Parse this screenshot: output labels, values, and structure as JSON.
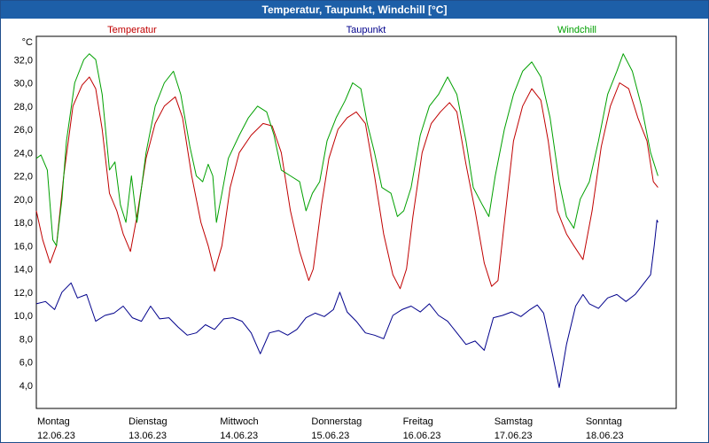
{
  "window": {
    "title": "Temperatur, Taupunkt, Windchill [°C]"
  },
  "chart_data": {
    "type": "line",
    "title": "Temperatur, Taupunkt, Windchill [°C]",
    "ylabel": "°C",
    "xlabel": "",
    "ylim": [
      2.0,
      34.0
    ],
    "xlim": [
      0,
      7
    ],
    "grid": true,
    "legend_position": "top",
    "yticks": [
      4,
      6,
      8,
      10,
      12,
      14,
      16,
      18,
      20,
      22,
      24,
      26,
      28,
      30,
      32
    ],
    "ytick_labels": [
      "4,0",
      "6,0",
      "8,0",
      "10,0",
      "12,0",
      "14,0",
      "16,0",
      "18,0",
      "20,0",
      "22,0",
      "24,0",
      "26,0",
      "28,0",
      "30,0",
      "32,0"
    ],
    "x_ticks": [
      {
        "day": "Montag",
        "date": "12.06.23"
      },
      {
        "day": "Dienstag",
        "date": "13.06.23"
      },
      {
        "day": "Mittwoch",
        "date": "14.06.23"
      },
      {
        "day": "Donnerstag",
        "date": "15.06.23"
      },
      {
        "day": "Freitag",
        "date": "16.06.23"
      },
      {
        "day": "Samstag",
        "date": "17.06.23"
      },
      {
        "day": "Sonntag",
        "date": "18.06.23"
      }
    ],
    "series": [
      {
        "name": "Temperatur",
        "color": "#c00000",
        "points": [
          [
            0.0,
            19.0
          ],
          [
            0.07,
            16.5
          ],
          [
            0.15,
            14.5
          ],
          [
            0.22,
            16.0
          ],
          [
            0.3,
            22.0
          ],
          [
            0.4,
            28.0
          ],
          [
            0.5,
            29.8
          ],
          [
            0.58,
            30.5
          ],
          [
            0.65,
            29.5
          ],
          [
            0.72,
            26.0
          ],
          [
            0.8,
            20.5
          ],
          [
            0.88,
            19.0
          ],
          [
            0.95,
            17.0
          ],
          [
            1.03,
            15.5
          ],
          [
            1.1,
            18.5
          ],
          [
            1.2,
            23.5
          ],
          [
            1.3,
            26.5
          ],
          [
            1.4,
            28.0
          ],
          [
            1.52,
            28.8
          ],
          [
            1.6,
            27.0
          ],
          [
            1.7,
            22.0
          ],
          [
            1.8,
            18.0
          ],
          [
            1.88,
            16.0
          ],
          [
            1.95,
            13.8
          ],
          [
            2.03,
            16.0
          ],
          [
            2.12,
            21.0
          ],
          [
            2.22,
            24.0
          ],
          [
            2.35,
            25.5
          ],
          [
            2.48,
            26.5
          ],
          [
            2.58,
            26.3
          ],
          [
            2.68,
            24.0
          ],
          [
            2.78,
            19.0
          ],
          [
            2.88,
            15.5
          ],
          [
            2.98,
            13.0
          ],
          [
            3.03,
            14.0
          ],
          [
            3.12,
            19.5
          ],
          [
            3.2,
            23.5
          ],
          [
            3.3,
            26.0
          ],
          [
            3.4,
            27.0
          ],
          [
            3.5,
            27.5
          ],
          [
            3.6,
            26.5
          ],
          [
            3.7,
            22.0
          ],
          [
            3.8,
            17.0
          ],
          [
            3.9,
            13.5
          ],
          [
            3.98,
            12.3
          ],
          [
            4.05,
            14.0
          ],
          [
            4.12,
            18.5
          ],
          [
            4.22,
            24.0
          ],
          [
            4.32,
            26.5
          ],
          [
            4.42,
            27.5
          ],
          [
            4.52,
            28.3
          ],
          [
            4.6,
            27.5
          ],
          [
            4.7,
            23.0
          ],
          [
            4.8,
            19.0
          ],
          [
            4.9,
            14.5
          ],
          [
            4.98,
            12.5
          ],
          [
            5.05,
            13.0
          ],
          [
            5.12,
            18.0
          ],
          [
            5.22,
            25.0
          ],
          [
            5.32,
            28.0
          ],
          [
            5.42,
            29.5
          ],
          [
            5.52,
            28.5
          ],
          [
            5.6,
            25.0
          ],
          [
            5.7,
            19.0
          ],
          [
            5.8,
            17.0
          ],
          [
            5.88,
            16.0
          ],
          [
            5.98,
            14.8
          ],
          [
            6.08,
            19.0
          ],
          [
            6.18,
            24.5
          ],
          [
            6.28,
            28.0
          ],
          [
            6.38,
            30.0
          ],
          [
            6.48,
            29.5
          ],
          [
            6.58,
            27.0
          ],
          [
            6.68,
            25.0
          ],
          [
            6.75,
            21.5
          ],
          [
            6.8,
            21.0
          ]
        ]
      },
      {
        "name": "Taupunkt",
        "color": "#00008b",
        "points": [
          [
            0.0,
            11.0
          ],
          [
            0.1,
            11.2
          ],
          [
            0.2,
            10.5
          ],
          [
            0.28,
            12.0
          ],
          [
            0.38,
            12.8
          ],
          [
            0.45,
            11.5
          ],
          [
            0.55,
            11.8
          ],
          [
            0.65,
            9.5
          ],
          [
            0.75,
            10.0
          ],
          [
            0.85,
            10.2
          ],
          [
            0.95,
            10.8
          ],
          [
            1.05,
            9.8
          ],
          [
            1.15,
            9.5
          ],
          [
            1.25,
            10.8
          ],
          [
            1.35,
            9.7
          ],
          [
            1.45,
            9.8
          ],
          [
            1.55,
            9.0
          ],
          [
            1.65,
            8.3
          ],
          [
            1.75,
            8.5
          ],
          [
            1.85,
            9.2
          ],
          [
            1.95,
            8.8
          ],
          [
            2.05,
            9.7
          ],
          [
            2.15,
            9.8
          ],
          [
            2.25,
            9.5
          ],
          [
            2.35,
            8.5
          ],
          [
            2.45,
            6.7
          ],
          [
            2.55,
            8.5
          ],
          [
            2.65,
            8.7
          ],
          [
            2.75,
            8.3
          ],
          [
            2.85,
            8.8
          ],
          [
            2.95,
            9.8
          ],
          [
            3.05,
            10.2
          ],
          [
            3.15,
            9.9
          ],
          [
            3.25,
            10.5
          ],
          [
            3.32,
            12.0
          ],
          [
            3.4,
            10.3
          ],
          [
            3.5,
            9.5
          ],
          [
            3.6,
            8.5
          ],
          [
            3.7,
            8.3
          ],
          [
            3.8,
            8.0
          ],
          [
            3.9,
            10.0
          ],
          [
            4.0,
            10.5
          ],
          [
            4.1,
            10.8
          ],
          [
            4.2,
            10.3
          ],
          [
            4.3,
            11.0
          ],
          [
            4.4,
            10.0
          ],
          [
            4.5,
            9.5
          ],
          [
            4.6,
            8.5
          ],
          [
            4.7,
            7.5
          ],
          [
            4.8,
            7.8
          ],
          [
            4.9,
            7.0
          ],
          [
            5.0,
            9.8
          ],
          [
            5.1,
            10.0
          ],
          [
            5.2,
            10.3
          ],
          [
            5.3,
            9.9
          ],
          [
            5.4,
            10.5
          ],
          [
            5.48,
            10.9
          ],
          [
            5.55,
            10.2
          ],
          [
            5.65,
            6.5
          ],
          [
            5.72,
            3.8
          ],
          [
            5.8,
            7.5
          ],
          [
            5.9,
            10.8
          ],
          [
            5.98,
            11.8
          ],
          [
            6.05,
            11.0
          ],
          [
            6.15,
            10.6
          ],
          [
            6.25,
            11.5
          ],
          [
            6.35,
            11.8
          ],
          [
            6.45,
            11.2
          ],
          [
            6.55,
            11.8
          ],
          [
            6.65,
            12.8
          ],
          [
            6.72,
            13.5
          ],
          [
            6.76,
            16.0
          ],
          [
            6.79,
            18.2
          ],
          [
            6.8,
            18.0
          ]
        ]
      },
      {
        "name": "Windchill",
        "color": "#00a000",
        "points": [
          [
            0.0,
            23.5
          ],
          [
            0.05,
            23.8
          ],
          [
            0.12,
            22.5
          ],
          [
            0.18,
            16.5
          ],
          [
            0.22,
            16.0
          ],
          [
            0.28,
            20.0
          ],
          [
            0.33,
            25.0
          ],
          [
            0.42,
            30.0
          ],
          [
            0.52,
            32.0
          ],
          [
            0.58,
            32.5
          ],
          [
            0.65,
            32.0
          ],
          [
            0.72,
            29.0
          ],
          [
            0.8,
            22.5
          ],
          [
            0.86,
            23.2
          ],
          [
            0.92,
            19.5
          ],
          [
            0.98,
            18.0
          ],
          [
            1.04,
            22.0
          ],
          [
            1.1,
            18.0
          ],
          [
            1.2,
            24.0
          ],
          [
            1.3,
            28.0
          ],
          [
            1.4,
            30.0
          ],
          [
            1.5,
            31.0
          ],
          [
            1.58,
            29.0
          ],
          [
            1.68,
            24.5
          ],
          [
            1.75,
            22.0
          ],
          [
            1.82,
            21.5
          ],
          [
            1.88,
            23.0
          ],
          [
            1.93,
            22.0
          ],
          [
            1.97,
            18.0
          ],
          [
            2.03,
            20.5
          ],
          [
            2.1,
            23.5
          ],
          [
            2.22,
            25.5
          ],
          [
            2.32,
            27.0
          ],
          [
            2.42,
            28.0
          ],
          [
            2.52,
            27.5
          ],
          [
            2.6,
            25.5
          ],
          [
            2.68,
            22.5
          ],
          [
            2.78,
            22.0
          ],
          [
            2.88,
            21.5
          ],
          [
            2.95,
            19.0
          ],
          [
            3.02,
            20.5
          ],
          [
            3.1,
            21.5
          ],
          [
            3.18,
            25.0
          ],
          [
            3.28,
            27.0
          ],
          [
            3.38,
            28.5
          ],
          [
            3.46,
            30.0
          ],
          [
            3.55,
            29.5
          ],
          [
            3.62,
            26.5
          ],
          [
            3.7,
            24.0
          ],
          [
            3.78,
            21.0
          ],
          [
            3.88,
            20.5
          ],
          [
            3.95,
            18.5
          ],
          [
            4.02,
            19.0
          ],
          [
            4.1,
            21.0
          ],
          [
            4.2,
            25.5
          ],
          [
            4.3,
            28.0
          ],
          [
            4.4,
            29.0
          ],
          [
            4.5,
            30.5
          ],
          [
            4.6,
            29.0
          ],
          [
            4.7,
            25.0
          ],
          [
            4.78,
            21.0
          ],
          [
            4.88,
            19.5
          ],
          [
            4.95,
            18.5
          ],
          [
            5.02,
            22.0
          ],
          [
            5.12,
            26.0
          ],
          [
            5.22,
            29.0
          ],
          [
            5.32,
            31.0
          ],
          [
            5.42,
            31.8
          ],
          [
            5.52,
            30.5
          ],
          [
            5.62,
            27.0
          ],
          [
            5.72,
            21.5
          ],
          [
            5.8,
            18.5
          ],
          [
            5.88,
            17.5
          ],
          [
            5.95,
            20.0
          ],
          [
            6.05,
            21.5
          ],
          [
            6.15,
            25.0
          ],
          [
            6.25,
            29.0
          ],
          [
            6.35,
            31.0
          ],
          [
            6.42,
            32.5
          ],
          [
            6.52,
            31.0
          ],
          [
            6.62,
            28.0
          ],
          [
            6.72,
            24.0
          ],
          [
            6.8,
            22.0
          ]
        ]
      }
    ]
  }
}
